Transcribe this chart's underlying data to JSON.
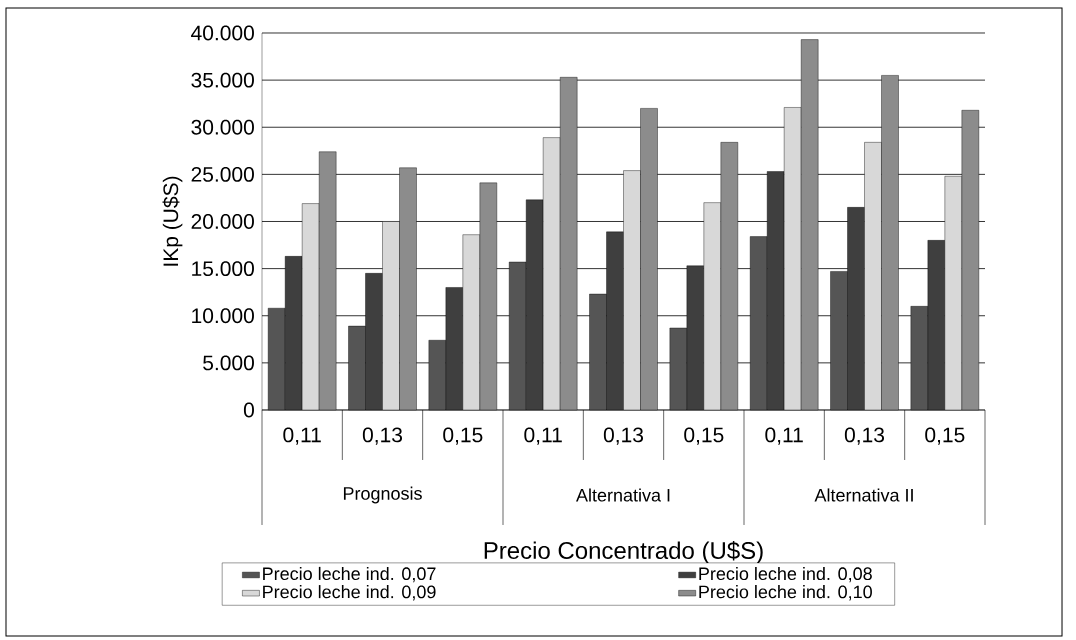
{
  "chart_data": {
    "type": "bar",
    "xlabel": "Precio Concentrado (U$S)",
    "ylabel": "IKp (U$S)",
    "categories": [
      "0,11",
      "0,13",
      "0,15",
      "0,11",
      "0,13",
      "0,15",
      "0,11",
      "0,13",
      "0,15"
    ],
    "annotations": [
      "Prognosis",
      "Alternativa I",
      "Alternativa II"
    ],
    "series": [
      {
        "name": "Precio leche ind. 0,07",
        "color": "#555555",
        "values": [
          10800,
          8900,
          7400,
          15700,
          12300,
          8700,
          18400,
          14700,
          11000
        ]
      },
      {
        "name": "Precio leche ind. 0,08",
        "color": "#3f3f3f",
        "values": [
          16300,
          14500,
          13000,
          22300,
          18900,
          15300,
          25300,
          21500,
          18000
        ]
      },
      {
        "name": "Precio leche ind. 0,09",
        "color": "#d8d8d8",
        "values": [
          21900,
          20000,
          18600,
          28900,
          25400,
          22000,
          32100,
          28400,
          24800
        ]
      },
      {
        "name": "Precio leche ind. 0,10",
        "color": "#8c8c8c",
        "values": [
          27400,
          25700,
          24100,
          35300,
          32000,
          28400,
          39300,
          35500,
          31800
        ]
      }
    ],
    "ylim": [
      0,
      40000
    ],
    "yticks": [
      {
        "value": 0,
        "label": "0"
      },
      {
        "value": 5000,
        "label": "5.000"
      },
      {
        "value": 10000,
        "label": "10.000"
      },
      {
        "value": 15000,
        "label": "15.000"
      },
      {
        "value": 20000,
        "label": "20.000"
      },
      {
        "value": 25000,
        "label": "25.000"
      },
      {
        "value": 30000,
        "label": "30.000"
      },
      {
        "value": 35000,
        "label": "35.000"
      },
      {
        "value": 40000,
        "label": "40.000"
      }
    ],
    "grid": "y",
    "legend": "bottom"
  }
}
